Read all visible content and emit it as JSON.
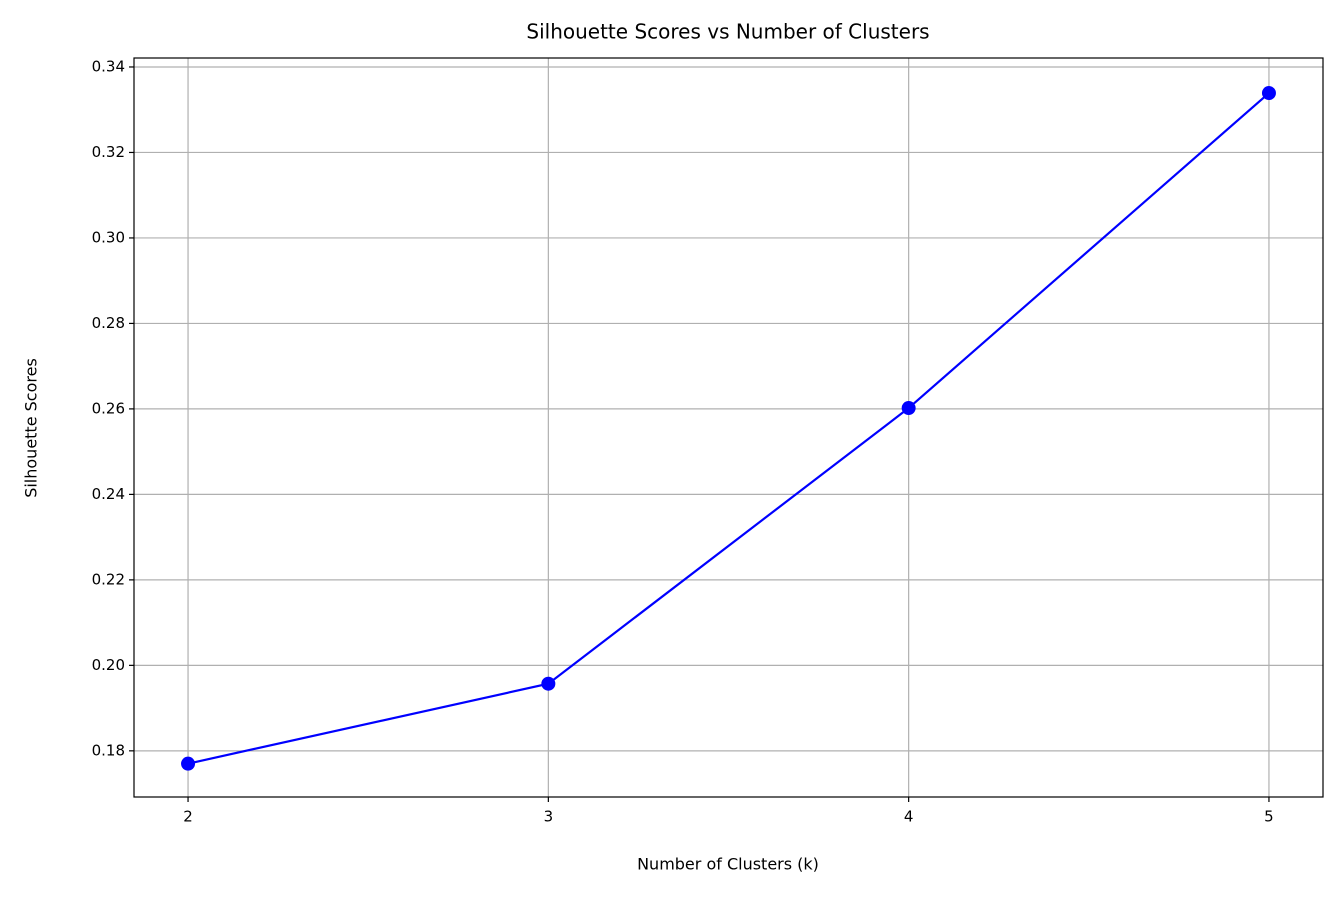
{
  "chart_data": {
    "type": "line",
    "title": "Silhouette Scores vs Number of Clusters",
    "x_label": "Number of Clusters (k)",
    "y_label": "Silhouette Scores",
    "x": [
      2,
      3,
      4,
      5
    ],
    "series": [
      {
        "name": "Silhouette Scores",
        "color": "#0000ff",
        "values": [
          0.177,
          0.1957,
          0.2602,
          0.3339
        ]
      }
    ],
    "xlim": [
      1.85,
      5.15
    ],
    "xticks": [
      2,
      3,
      4,
      5
    ],
    "ylim": [
      0.1692,
      0.3421
    ],
    "yticks": [
      0.18,
      {
        "value": 0.2,
        "label": "0.20"
      },
      0.22,
      0.24,
      0.26,
      0.28,
      {
        "value": 0.3,
        "label": "0.30"
      },
      0.32,
      0.34
    ],
    "grid": true,
    "marker": "circle"
  }
}
